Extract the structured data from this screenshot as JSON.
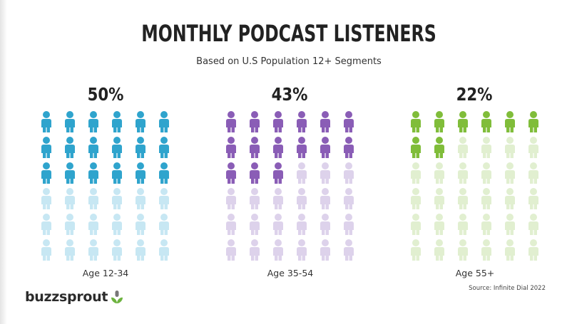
{
  "title": "MONTHLY PODCAST LISTENERS",
  "subtitle": "Based on U.S Population 12+ Segments",
  "chart_data": {
    "type": "pictograph",
    "icons_per_group": 36,
    "categories": [
      "Age 12-34",
      "Age 35-54",
      "Age 55+"
    ],
    "values": [
      50,
      43,
      22
    ],
    "value_labels": [
      "50%",
      "43%",
      "22%"
    ],
    "colors": [
      {
        "filled": "#2fa4cd",
        "empty": "#c7e7f3"
      },
      {
        "filled": "#8a5db6",
        "empty": "#ddd2eb"
      },
      {
        "filled": "#80bd3a",
        "empty": "#e1efd0"
      }
    ]
  },
  "source": "Source: Infinite Dial 2022",
  "logo": {
    "text": "buzzsprout",
    "icon": "sprout-microphone-icon"
  }
}
